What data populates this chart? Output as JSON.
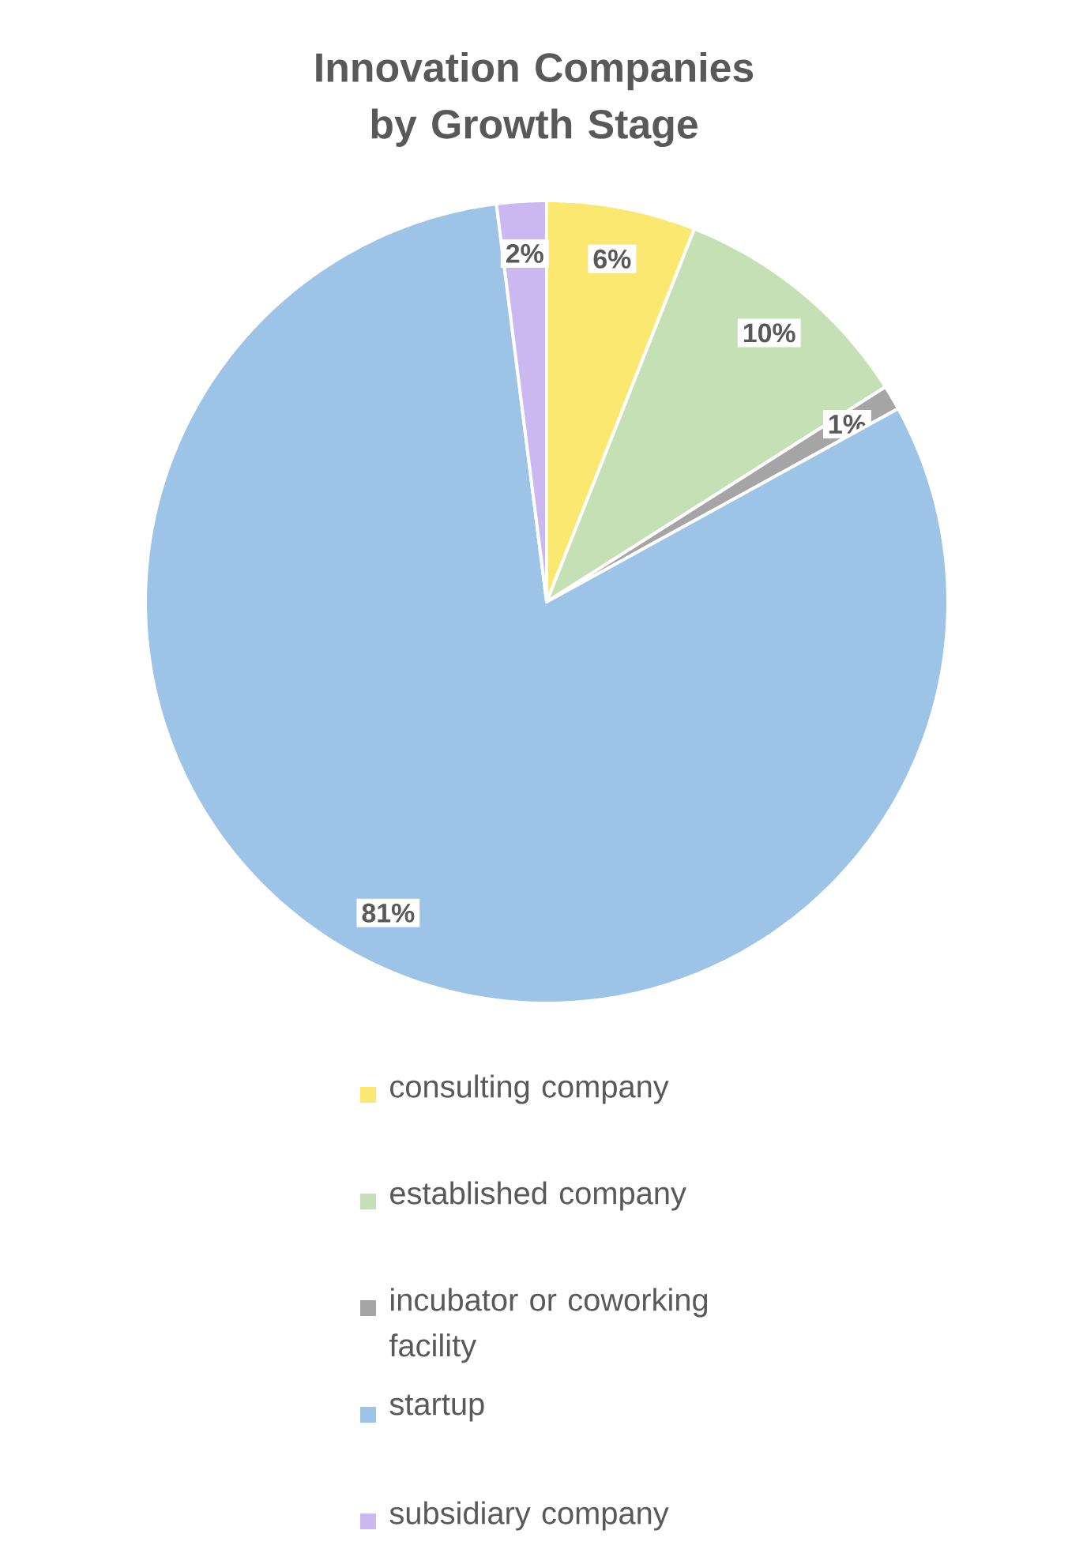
{
  "chart_data": {
    "type": "pie",
    "title": "Innovation Companies by Growth Stage",
    "categories": [
      "consulting company",
      "established company",
      "incubator or coworking facility",
      "startup",
      "subsidiary company"
    ],
    "values": [
      6,
      10,
      1,
      81,
      2
    ],
    "value_labels": [
      "6%",
      "10%",
      "1%",
      "81%",
      "2%"
    ],
    "colors": [
      "#fbe870",
      "#c5e0b4",
      "#a5a5a5",
      "#9dc3e6",
      "#ccb8f0"
    ],
    "legend": "bottom"
  }
}
